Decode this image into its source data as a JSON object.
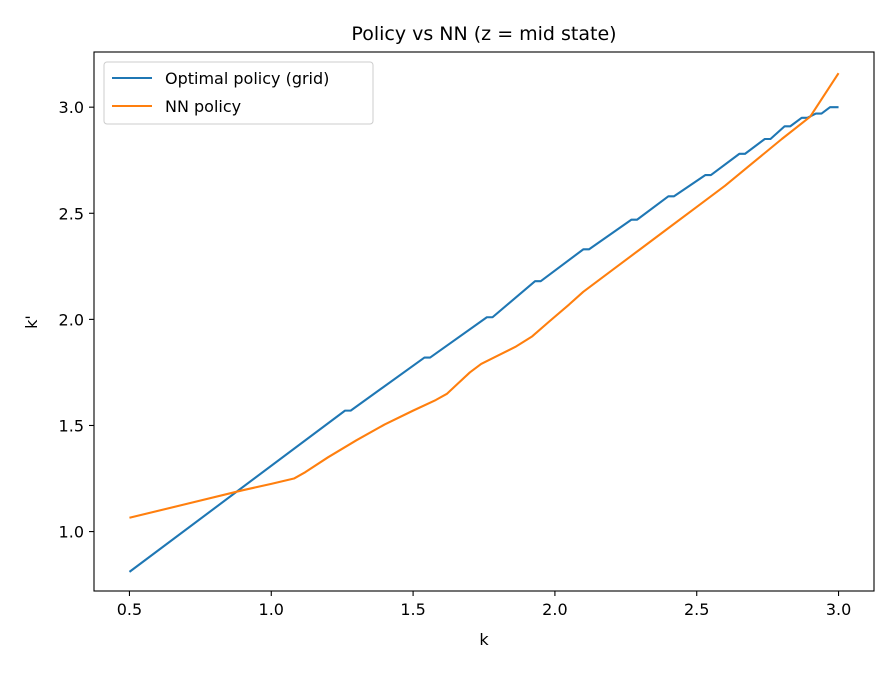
{
  "chart_data": {
    "type": "line",
    "title": "Policy vs NN (z = mid state)",
    "xlabel": "k",
    "ylabel": "k'",
    "xlim": [
      0.375,
      3.125
    ],
    "ylim": [
      0.72,
      3.26
    ],
    "xticks": [
      0.5,
      1.0,
      1.5,
      2.0,
      2.5,
      3.0
    ],
    "xtick_labels": [
      "0.5",
      "1.0",
      "1.5",
      "2.0",
      "2.5",
      "3.0"
    ],
    "yticks": [
      1.0,
      1.5,
      2.0,
      2.5,
      3.0
    ],
    "ytick_labels": [
      "1.0",
      "1.5",
      "2.0",
      "2.5",
      "3.0"
    ],
    "grid": false,
    "legend_position": "upper-left",
    "series": [
      {
        "name": "Optimal policy (grid)",
        "color": "#1f77b4",
        "x": [
          0.5,
          1.26,
          1.28,
          1.54,
          1.56,
          1.76,
          1.78,
          1.93,
          1.95,
          2.1,
          2.12,
          2.27,
          2.29,
          2.4,
          2.42,
          2.53,
          2.55,
          2.65,
          2.67,
          2.74,
          2.76,
          2.81,
          2.83,
          2.87,
          2.89,
          2.92,
          2.94,
          2.96,
          2.97,
          3.0
        ],
        "values": [
          0.81,
          1.57,
          1.57,
          1.82,
          1.82,
          2.01,
          2.01,
          2.18,
          2.18,
          2.33,
          2.33,
          2.47,
          2.47,
          2.58,
          2.58,
          2.68,
          2.68,
          2.78,
          2.78,
          2.85,
          2.85,
          2.91,
          2.91,
          2.95,
          2.95,
          2.97,
          2.97,
          2.99,
          3.0,
          3.0
        ]
      },
      {
        "name": "NN policy",
        "color": "#ff7f0e",
        "x": [
          0.5,
          0.7,
          0.9,
          1.0,
          1.08,
          1.12,
          1.2,
          1.3,
          1.4,
          1.5,
          1.58,
          1.62,
          1.66,
          1.7,
          1.74,
          1.8,
          1.86,
          1.92,
          1.98,
          2.05,
          2.1,
          2.2,
          2.3,
          2.4,
          2.5,
          2.6,
          2.7,
          2.8,
          2.9,
          3.0
        ],
        "values": [
          1.065,
          1.13,
          1.195,
          1.225,
          1.25,
          1.28,
          1.35,
          1.43,
          1.505,
          1.57,
          1.62,
          1.65,
          1.7,
          1.75,
          1.79,
          1.83,
          1.87,
          1.92,
          1.99,
          2.07,
          2.13,
          2.23,
          2.33,
          2.43,
          2.53,
          2.63,
          2.74,
          2.85,
          2.955,
          3.16
        ]
      }
    ]
  }
}
